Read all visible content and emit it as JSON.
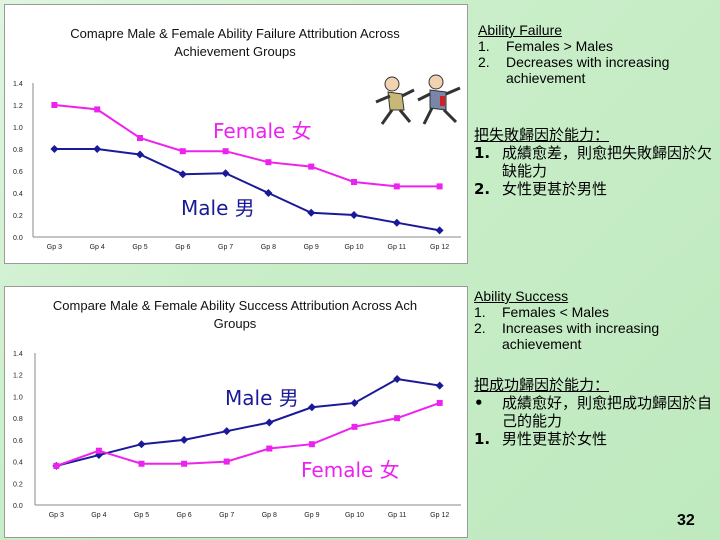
{
  "chart_data": [
    {
      "type": "line",
      "title": "Comapre Male & Female Ability Failure Attribution Across Achievement Groups",
      "categories": [
        "Gp 3",
        "Gp 4",
        "Gp 5",
        "Gp 6",
        "Gp 7",
        "Gp 8",
        "Gp 9",
        "Gp 10",
        "Gp 11",
        "Gp 12"
      ],
      "yticks": [
        "0.0",
        "0.2",
        "0.4",
        "0.6",
        "0.8",
        "1.0",
        "1.2",
        "1.4"
      ],
      "ylim": [
        0,
        1.4
      ],
      "series": [
        {
          "name": "Female 女",
          "color": "#ee22ee",
          "marker": "square",
          "values": [
            1.2,
            1.16,
            0.9,
            0.78,
            0.78,
            0.68,
            0.64,
            0.5,
            0.46,
            0.46
          ]
        },
        {
          "name": "Male 男",
          "color": "#1a1a99",
          "marker": "diamond",
          "values": [
            0.8,
            0.8,
            0.75,
            0.57,
            0.58,
            0.4,
            0.22,
            0.2,
            0.13,
            0.06
          ]
        }
      ],
      "grid": false
    },
    {
      "type": "line",
      "title": "Compare Male & Female Ability Success Attribution Across Ach Groups",
      "categories": [
        "Gp 3",
        "Gp 4",
        "Gp 5",
        "Gp 6",
        "Gp 7",
        "Gp 8",
        "Gp 9",
        "Gp 10",
        "Gp 11",
        "Gp 12"
      ],
      "yticks": [
        "0.0",
        "0.2",
        "0.4",
        "0.6",
        "0.8",
        "1.0",
        "1.2",
        "1.4"
      ],
      "ylim": [
        0,
        1.4
      ],
      "series": [
        {
          "name": "Male 男",
          "color": "#1a1a99",
          "marker": "diamond",
          "values": [
            0.36,
            0.46,
            0.56,
            0.6,
            0.68,
            0.76,
            0.9,
            0.94,
            1.16,
            1.1
          ]
        },
        {
          "name": "Female 女",
          "color": "#ee22ee",
          "marker": "square",
          "values": [
            0.36,
            0.5,
            0.38,
            0.38,
            0.4,
            0.52,
            0.56,
            0.72,
            0.8,
            0.94
          ]
        }
      ],
      "grid": false
    }
  ],
  "notes": {
    "failure_en": {
      "heading": "Ability Failure",
      "items": [
        {
          "num": "1.",
          "text": "Females > Males"
        },
        {
          "num": "2.",
          "text": "Decreases with increasing achievement"
        }
      ]
    },
    "failure_zh": {
      "heading": "把失敗歸因於能力：",
      "items": [
        {
          "num": "1.",
          "text": "成績愈差，則愈把失敗歸因於欠缺能力"
        },
        {
          "num": "2.",
          "text": "女性更甚於男性"
        }
      ]
    },
    "success_en": {
      "heading": "Ability Success",
      "items": [
        {
          "num": "1.",
          "text": "Females < Males"
        },
        {
          "num": "2.",
          "text": "Increases with increasing achievement"
        }
      ]
    },
    "success_zh": {
      "heading": "把成功歸因於能力：",
      "items": [
        {
          "num": "•",
          "text": "成績愈好，則愈把成功歸因於自己的能力"
        },
        {
          "num": "1.",
          "text": "男性更甚於女性"
        }
      ]
    }
  },
  "page_number": "32",
  "colors": {
    "female": "#ee22ee",
    "male": "#1a1a99",
    "background": "#c9eec9"
  }
}
